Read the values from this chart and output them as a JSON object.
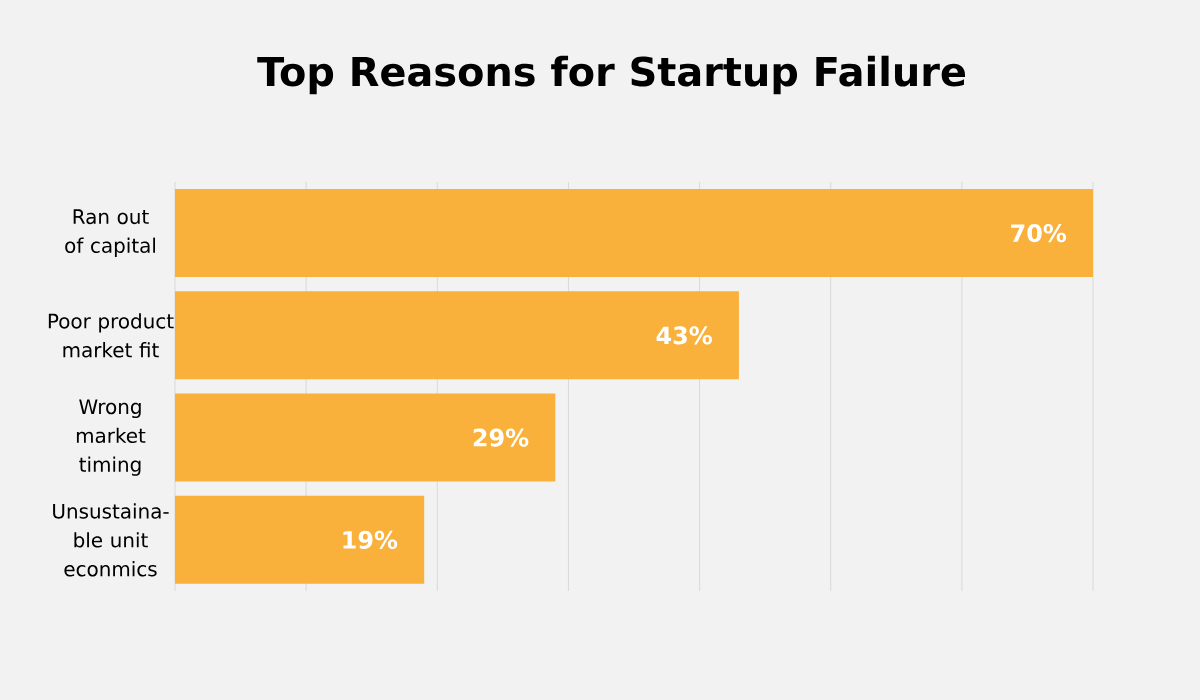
{
  "chart_data": {
    "type": "bar",
    "orientation": "horizontal",
    "title": "Top Reasons for Startup Failure",
    "categories": [
      "Ran out of capital",
      "Poor product market fit",
      "Wrong market timing",
      "Unsustaina-ble unit econmics"
    ],
    "values": [
      70,
      43,
      29,
      19
    ],
    "color": "#f9b13c",
    "value_labels": [
      "70%",
      "43%",
      "29%",
      "19%"
    ],
    "xlim": [
      0,
      70
    ],
    "xticks": [
      {
        "value": 0,
        "label": null
      },
      {
        "value": 10,
        "label": null
      },
      {
        "value": 20,
        "label": null
      },
      {
        "value": 30,
        "label": null
      },
      {
        "value": 40,
        "label": null
      },
      {
        "value": 50,
        "label": null
      },
      {
        "value": 60,
        "label": null
      },
      {
        "value": 70,
        "label": null
      }
    ],
    "grid": "x",
    "tick_labels": "y"
  }
}
